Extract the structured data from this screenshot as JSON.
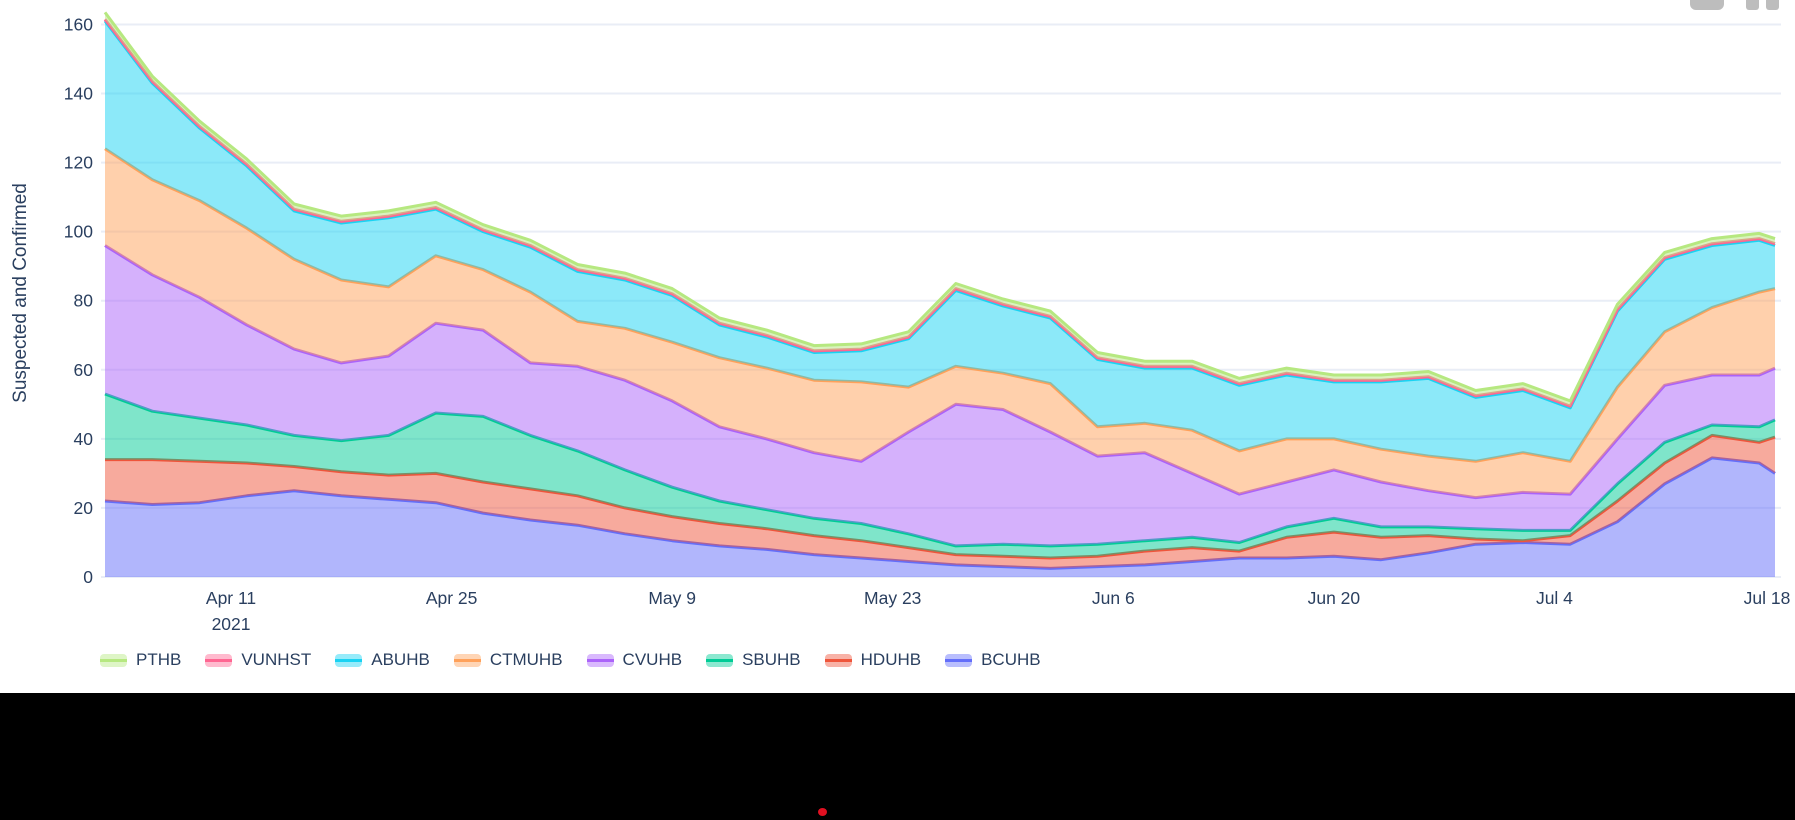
{
  "chart_data": {
    "type": "area",
    "stacked": true,
    "ylabel": "Suspected and Confirmed",
    "ylim": [
      0,
      165
    ],
    "yticks": [
      0,
      20,
      40,
      60,
      80,
      100,
      120,
      140,
      160
    ],
    "xticks": [
      {
        "label": "Apr 11",
        "day": 8,
        "sublabel": "2021"
      },
      {
        "label": "Apr 25",
        "day": 22
      },
      {
        "label": "May 9",
        "day": 36
      },
      {
        "label": "May 23",
        "day": 50
      },
      {
        "label": "Jun 6",
        "day": 64
      },
      {
        "label": "Jun 20",
        "day": 78
      },
      {
        "label": "Jul 4",
        "day": 92
      },
      {
        "label": "Jul 18",
        "day": 106
      }
    ],
    "grid": true,
    "legend_position": "bottom-left",
    "x_dates": [
      "Apr 3",
      "Apr 6",
      "Apr 9",
      "Apr 12",
      "Apr 15",
      "Apr 18",
      "Apr 21",
      "Apr 24",
      "Apr 27",
      "Apr 30",
      "May 3",
      "May 6",
      "May 9",
      "May 12",
      "May 15",
      "May 18",
      "May 21",
      "May 24",
      "May 27",
      "May 30",
      "Jun 2",
      "Jun 5",
      "Jun 8",
      "Jun 11",
      "Jun 14",
      "Jun 17",
      "Jun 20",
      "Jun 23",
      "Jun 26",
      "Jun 29",
      "Jul 2",
      "Jul 5",
      "Jul 8",
      "Jul 11",
      "Jul 14",
      "Jul 17",
      "Jul 18"
    ],
    "x_days": [
      0,
      3,
      6,
      9,
      12,
      15,
      18,
      21,
      24,
      27,
      30,
      33,
      36,
      39,
      42,
      45,
      48,
      51,
      54,
      57,
      60,
      63,
      66,
      69,
      72,
      75,
      78,
      81,
      84,
      87,
      90,
      93,
      96,
      99,
      102,
      105,
      106
    ],
    "series": [
      {
        "name": "BCUHB",
        "color": "#636EFA",
        "values": [
          22,
          21,
          21.5,
          23.5,
          25,
          23.5,
          22.5,
          21.5,
          18.5,
          16.5,
          15,
          12.5,
          10.5,
          9,
          8,
          6.5,
          5.5,
          4.5,
          3.5,
          3,
          2.5,
          3,
          3.5,
          4.5,
          5.5,
          5.5,
          6,
          5,
          7,
          9.5,
          10,
          9.5,
          16,
          27,
          34.5,
          33,
          30
        ]
      },
      {
        "name": "HDUHB",
        "color": "#EF553B",
        "values": [
          12,
          13,
          12,
          9.5,
          7,
          7,
          7,
          8.5,
          9,
          9,
          8.5,
          7.5,
          7,
          6.5,
          6,
          5.5,
          5,
          4,
          3,
          3,
          3,
          3,
          4,
          4,
          2,
          6,
          7,
          6.5,
          5,
          1.5,
          0.5,
          2.5,
          6,
          6,
          6.5,
          6,
          10.5
        ]
      },
      {
        "name": "SBUHB",
        "color": "#00CC96",
        "values": [
          19,
          14,
          12.5,
          11,
          9,
          9,
          11.5,
          17.5,
          19,
          15.5,
          13,
          11,
          8.5,
          6.5,
          5.5,
          5,
          5,
          4,
          2.5,
          3.5,
          3.5,
          3.5,
          3,
          3,
          2.5,
          3,
          4,
          3,
          2.5,
          3,
          3,
          1.5,
          5,
          6,
          3,
          4.5,
          5
        ]
      },
      {
        "name": "CVUHB",
        "color": "#AB63FA",
        "values": [
          43,
          39.5,
          35,
          29,
          25,
          22.5,
          23,
          26,
          25,
          21,
          24.5,
          26,
          25,
          21.5,
          20.5,
          19,
          18,
          29.5,
          41,
          39,
          33,
          25.5,
          25.5,
          18.5,
          14,
          13,
          14,
          13,
          10.5,
          9,
          11,
          10.5,
          13,
          16.5,
          14.5,
          15,
          15
        ]
      },
      {
        "name": "CTMUHB",
        "color": "#FFA15A",
        "values": [
          28,
          27.5,
          28,
          28,
          26,
          24,
          20,
          19.5,
          17.5,
          20.5,
          13,
          15,
          17,
          20,
          20.5,
          21,
          23,
          13,
          11,
          10.5,
          14,
          8.5,
          8.5,
          12.5,
          12.5,
          12.5,
          9,
          9.5,
          10,
          10.5,
          11.5,
          9.5,
          15,
          15.5,
          19.5,
          24,
          23
        ]
      },
      {
        "name": "ABUHB",
        "color": "#19D3F3",
        "values": [
          37,
          28,
          21,
          18,
          14,
          16.5,
          20,
          13.5,
          11,
          13,
          14.5,
          14,
          13.5,
          9.5,
          9,
          8,
          9,
          14,
          22,
          19.5,
          19,
          19.5,
          16,
          18,
          19,
          18.5,
          16.5,
          19.5,
          22.5,
          18.5,
          18,
          15.5,
          22,
          21,
          18,
          15,
          12.5
        ]
      },
      {
        "name": "VUNHST",
        "color": "#FF6692",
        "values": [
          0.5,
          0.5,
          0.5,
          0.5,
          0.5,
          0.5,
          0.5,
          0.5,
          0.5,
          0.5,
          0.5,
          0.5,
          0.5,
          0.5,
          0.5,
          0.5,
          0.5,
          0.5,
          0.5,
          0.5,
          0.5,
          0.5,
          0.5,
          0.5,
          0.5,
          0.5,
          0.5,
          0.5,
          0.5,
          0.5,
          0.5,
          0.5,
          0.5,
          0.5,
          0.5,
          0.5,
          0.5
        ]
      },
      {
        "name": "PTHB",
        "color": "#B6E880",
        "values": [
          2,
          1.5,
          1.5,
          1.5,
          1.5,
          1.5,
          1.5,
          1.5,
          1.5,
          1.5,
          1.5,
          1.5,
          1.5,
          1.5,
          1.5,
          1.5,
          1.5,
          1.5,
          1.5,
          1.5,
          1.5,
          1.5,
          1.5,
          1.5,
          1.5,
          1.5,
          1.5,
          1.5,
          1.5,
          1.5,
          1.5,
          1.5,
          1.5,
          1.5,
          1.5,
          1.5,
          1.5
        ]
      }
    ]
  },
  "legend": {
    "items": [
      {
        "label": "PTHB",
        "color": "#B6E880"
      },
      {
        "label": "VUNHST",
        "color": "#FF6692"
      },
      {
        "label": "ABUHB",
        "color": "#19D3F3"
      },
      {
        "label": "CTMUHB",
        "color": "#FFA15A"
      },
      {
        "label": "CVUHB",
        "color": "#AB63FA"
      },
      {
        "label": "SBUHB",
        "color": "#00CC96"
      },
      {
        "label": "HDUHB",
        "color": "#EF553B"
      },
      {
        "label": "BCUHB",
        "color": "#636EFA"
      }
    ]
  },
  "modebar": {
    "icons": [
      "camera",
      "dashed-box"
    ],
    "color": "#bdbdbd"
  },
  "style": {
    "font_color": "#2a3f5f",
    "grid_color": "#e9edf6",
    "background": "#ffffff",
    "bottom_bar_color": "#000000",
    "red_dot_color": "#e01021",
    "fill_alpha": 0.5
  }
}
